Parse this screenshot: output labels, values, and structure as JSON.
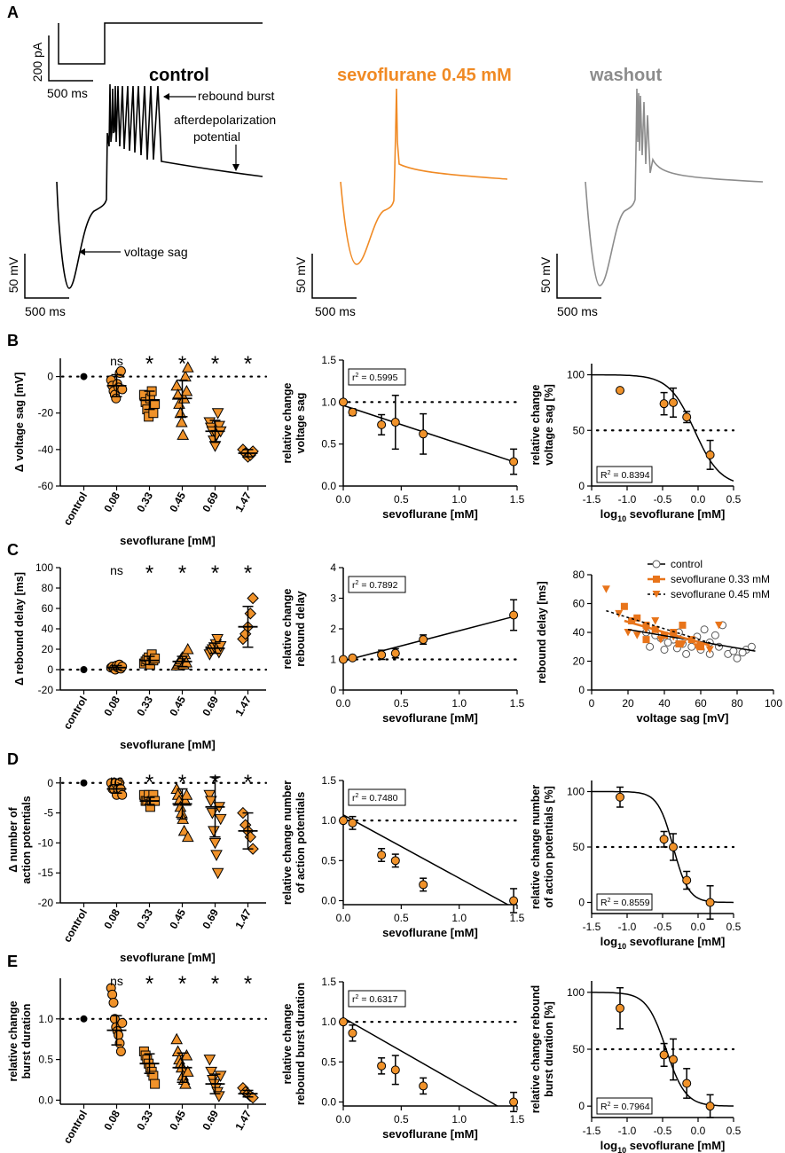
{
  "colors": {
    "orange": "#f0922a",
    "orange_dark": "#e8741a",
    "gray": "#8c8c8c",
    "black": "#000000"
  },
  "panel_letters": [
    "A",
    "B",
    "C",
    "D",
    "E"
  ],
  "panel_a": {
    "scale_current": "200 pA",
    "scale_time": "500 ms",
    "scale_voltage": "50 mV",
    "titles": [
      "control",
      "sevoflurane 0.45 mM",
      "washout"
    ],
    "annotations": {
      "rebound_burst": "rebound burst",
      "adp_line1": "afterdepolarization",
      "adp_line2": "potential",
      "voltage_sag": "voltage sag"
    }
  },
  "chart_data": [
    {
      "id": "B_left",
      "type": "scatter",
      "ylabel": "Δ voltage sag [mV]",
      "xlabel": "sevoflurane [mM]",
      "categories": [
        "control",
        "0.08",
        "0.33",
        "0.45",
        "0.69",
        "1.47"
      ],
      "ylim": [
        -60,
        10
      ],
      "yticks": [
        -60,
        -40,
        -20,
        0
      ],
      "sig": [
        "ns",
        "*",
        "*",
        "*",
        "*"
      ],
      "markers": [
        "circle",
        "circle",
        "square",
        "triangle",
        "triangle-down",
        "diamond"
      ],
      "points": [
        [
          0
        ],
        [
          -2,
          -5,
          -8,
          -10,
          -12,
          -4,
          -6,
          2,
          3,
          -7
        ],
        [
          -10,
          -14,
          -18,
          -22,
          -12,
          -8,
          -20,
          -15
        ],
        [
          -5,
          -10,
          -15,
          -20,
          -25,
          -32,
          -12,
          0,
          -8,
          5
        ],
        [
          -25,
          -28,
          -30,
          -35,
          -38,
          -32,
          -20,
          -27,
          -30
        ],
        [
          -40,
          -42,
          -44,
          -43,
          -41
        ]
      ],
      "means": [
        0,
        -5,
        -13,
        -12,
        -30,
        -42
      ],
      "sds": [
        0,
        6,
        5,
        10,
        6,
        2
      ]
    },
    {
      "id": "B_mid",
      "type": "line",
      "ylabel": [
        "relative change",
        "voltage sag"
      ],
      "xlabel": "sevoflurane [mM]",
      "xlim": [
        0,
        1.5
      ],
      "ylim": [
        0,
        1.5
      ],
      "xticks": [
        "0.0",
        "0.5",
        "1.0",
        "1.5"
      ],
      "yticks": [
        "0.0",
        "0.5",
        "1.0",
        "1.5"
      ],
      "r2_label": "r",
      "r2_value": " = 0.5995",
      "refline": 1.0,
      "x": [
        0,
        0.08,
        0.33,
        0.45,
        0.69,
        1.47
      ],
      "y": [
        1.0,
        0.88,
        0.73,
        0.76,
        0.62,
        0.29
      ],
      "err": [
        0,
        0.04,
        0.12,
        0.32,
        0.24,
        0.15
      ],
      "fit": [
        [
          0,
          0.96
        ],
        [
          1.47,
          0.29
        ]
      ]
    },
    {
      "id": "B_right",
      "type": "line",
      "ylabel": [
        "relative change",
        "voltage sag [%]"
      ],
      "xlabel_pre": "log",
      "xlabel_sub": "10",
      "xlabel_post": " sevoflurane [mM]",
      "xlim": [
        -1.5,
        0.5
      ],
      "ylim": [
        0,
        110
      ],
      "xticks": [
        "-1.5",
        "-1.0",
        "-0.5",
        "0.0",
        "0.5"
      ],
      "yticks": [
        "0",
        "50",
        "100"
      ],
      "r2_label": "R",
      "r2_value": " = 0.8394",
      "refline": 50,
      "x": [
        -1.1,
        -0.48,
        -0.35,
        -0.16,
        0.17
      ],
      "y": [
        86,
        74,
        75,
        62,
        28
      ],
      "err": [
        0,
        10,
        13,
        5,
        13
      ],
      "sigmoid": {
        "top": 100,
        "bottom": 0,
        "ic50": -0.05,
        "hill": 1.2
      }
    },
    {
      "id": "C_left",
      "type": "scatter",
      "ylabel": "Δ rebound delay [ms]",
      "xlabel": "sevoflurane [mM]",
      "categories": [
        "control",
        "0.08",
        "0.33",
        "0.45",
        "0.69",
        "1.47"
      ],
      "ylim": [
        -20,
        100
      ],
      "yticks": [
        -20,
        0,
        20,
        40,
        60,
        80,
        100
      ],
      "sig": [
        "ns",
        "*",
        "*",
        "*",
        "*"
      ],
      "markers": [
        "circle",
        "circle",
        "square",
        "triangle",
        "triangle-down",
        "diamond"
      ],
      "points": [
        [
          0
        ],
        [
          2,
          3,
          1,
          0,
          4,
          2,
          5,
          1,
          3
        ],
        [
          6,
          8,
          10,
          12,
          5,
          15,
          9,
          11
        ],
        [
          4,
          6,
          8,
          10,
          12,
          5,
          15,
          7,
          20
        ],
        [
          15,
          18,
          20,
          22,
          25,
          30,
          17,
          23
        ],
        [
          30,
          35,
          42,
          55,
          70
        ]
      ],
      "means": [
        0,
        2,
        9,
        8,
        21,
        42
      ],
      "sds": [
        0,
        2,
        4,
        5,
        5,
        20
      ]
    },
    {
      "id": "C_mid",
      "type": "line",
      "ylabel": [
        "relative change",
        "rebound delay"
      ],
      "xlabel": "sevoflurane [mM]",
      "xlim": [
        0,
        1.5
      ],
      "ylim": [
        0,
        4
      ],
      "xticks": [
        "0.0",
        "0.5",
        "1.0",
        "1.5"
      ],
      "yticks": [
        "0",
        "1",
        "2",
        "3",
        "4"
      ],
      "r2_label": "r",
      "r2_value": " = 0.7892",
      "refline": 1.0,
      "x": [
        0,
        0.08,
        0.33,
        0.45,
        0.69,
        1.47
      ],
      "y": [
        1.0,
        1.05,
        1.15,
        1.2,
        1.65,
        2.45
      ],
      "err": [
        0,
        0.05,
        0.15,
        0.15,
        0.15,
        0.5
      ],
      "fit": [
        [
          0,
          0.95
        ],
        [
          1.47,
          2.4
        ]
      ]
    },
    {
      "id": "C_right",
      "type": "scatter",
      "ylabel": "rebound delay [ms]",
      "xlabel": "voltage sag [mV]",
      "xlim": [
        0,
        100
      ],
      "ylim": [
        0,
        80
      ],
      "xticks": [
        "0",
        "20",
        "40",
        "60",
        "80",
        "100"
      ],
      "yticks": [
        "0",
        "20",
        "40",
        "60",
        "80"
      ],
      "legend": [
        "control",
        "sevoflurane 0.33 mM",
        "sevoflurane 0.45 mM"
      ],
      "control_pts": [
        [
          32,
          30
        ],
        [
          40,
          28
        ],
        [
          45,
          35
        ],
        [
          50,
          32
        ],
        [
          55,
          30
        ],
        [
          60,
          28
        ],
        [
          65,
          33
        ],
        [
          70,
          30
        ],
        [
          75,
          25
        ],
        [
          80,
          22
        ],
        [
          85,
          28
        ],
        [
          88,
          30
        ],
        [
          30,
          40
        ],
        [
          38,
          36
        ],
        [
          48,
          40
        ],
        [
          58,
          37
        ],
        [
          68,
          38
        ],
        [
          78,
          27
        ],
        [
          52,
          25
        ],
        [
          62,
          42
        ],
        [
          72,
          45
        ],
        [
          42,
          33
        ],
        [
          35,
          38
        ],
        [
          65,
          25
        ],
        [
          83,
          26
        ],
        [
          47,
          29
        ],
        [
          57,
          34
        ]
      ],
      "s033_pts": [
        [
          18,
          58
        ],
        [
          22,
          48
        ],
        [
          30,
          45
        ],
        [
          35,
          42
        ],
        [
          40,
          38
        ],
        [
          45,
          40
        ],
        [
          55,
          35
        ],
        [
          30,
          35
        ],
        [
          25,
          50
        ],
        [
          50,
          45
        ],
        [
          60,
          30
        ],
        [
          48,
          32
        ]
      ],
      "s045_pts": [
        [
          8,
          70
        ],
        [
          15,
          53
        ],
        [
          20,
          40
        ],
        [
          25,
          38
        ],
        [
          30,
          42
        ],
        [
          38,
          35
        ],
        [
          45,
          37
        ],
        [
          50,
          32
        ],
        [
          58,
          30
        ],
        [
          65,
          28
        ],
        [
          70,
          45
        ],
        [
          35,
          48
        ]
      ],
      "fit_control": [
        [
          20,
          42
        ],
        [
          90,
          27
        ]
      ],
      "fit_033": [
        [
          18,
          48
        ],
        [
          65,
          31
        ]
      ],
      "fit_045": [
        [
          8,
          55
        ],
        [
          72,
          30
        ]
      ]
    },
    {
      "id": "D_left",
      "type": "scatter",
      "ylabel": [
        "Δ number of",
        "action potentials"
      ],
      "xlabel": "sevoflurane [mM]",
      "categories": [
        "control",
        "0.08",
        "0.33",
        "0.45",
        "0.69",
        "1.47"
      ],
      "ylim": [
        -20,
        1
      ],
      "yticks": [
        -20,
        -15,
        -10,
        -5,
        0
      ],
      "sig": [
        "ns",
        "*",
        "*",
        "*",
        "*"
      ],
      "markers": [
        "circle",
        "circle",
        "square",
        "triangle",
        "triangle-down",
        "diamond"
      ],
      "points": [
        [
          0
        ],
        [
          0,
          -1,
          -1,
          0,
          -2,
          -1,
          0,
          -1,
          -2
        ],
        [
          -2,
          -3,
          -3,
          -2,
          -4,
          -3,
          -2,
          -3
        ],
        [
          -1,
          -2,
          -3,
          -4,
          -5,
          -6,
          -8,
          -3,
          -2,
          -9
        ],
        [
          -2,
          -3,
          -5,
          -8,
          -10,
          -12,
          -15,
          -4,
          -6
        ],
        [
          -5,
          -7,
          -8,
          -9,
          -11
        ]
      ],
      "means": [
        0,
        -1,
        -3,
        -3.5,
        -4,
        -8
      ],
      "sds": [
        0,
        0.7,
        0.6,
        2.5,
        5,
        3
      ]
    },
    {
      "id": "D_mid",
      "type": "line",
      "ylabel": [
        "relative change number",
        "of action potentials"
      ],
      "xlabel": "sevoflurane [mM]",
      "xlim": [
        0,
        1.5
      ],
      "ylim": [
        -0.05,
        1.5
      ],
      "xticks": [
        "0.0",
        "0.5",
        "1.0",
        "1.5"
      ],
      "yticks": [
        "0.0",
        "0.5",
        "1.0",
        "1.5"
      ],
      "r2_label": "r",
      "r2_value": " = 0.7480",
      "refline": 1.0,
      "x": [
        0,
        0.08,
        0.33,
        0.45,
        0.69,
        1.47
      ],
      "y": [
        1.0,
        0.97,
        0.57,
        0.5,
        0.2,
        0.0
      ],
      "err": [
        0,
        0.08,
        0.08,
        0.08,
        0.08,
        0.15
      ],
      "fit": [
        [
          0,
          1.07
        ],
        [
          1.42,
          -0.05
        ]
      ]
    },
    {
      "id": "D_right",
      "type": "line",
      "ylabel": [
        "relative change number",
        "of action potentials [%]"
      ],
      "xlabel_pre": "log",
      "xlabel_sub": "10",
      "xlabel_post": " sevoflurane [mM]",
      "xlim": [
        -1.5,
        0.5
      ],
      "ylim": [
        -10,
        110
      ],
      "xticks": [
        "-1.5",
        "-1.0",
        "-0.5",
        "0.0",
        "0.5"
      ],
      "yticks": [
        "0",
        "50",
        "100"
      ],
      "r2_label": "R",
      "r2_value": " = 0.8559",
      "refline": 50,
      "x": [
        -1.1,
        -0.48,
        -0.35,
        -0.16,
        0.17
      ],
      "y": [
        95,
        57,
        50,
        20,
        0
      ],
      "err": [
        9,
        7,
        12,
        8,
        15
      ],
      "sigmoid": {
        "top": 100,
        "bottom": 0,
        "ic50": -0.35,
        "hill": 2.0
      }
    },
    {
      "id": "E_left",
      "type": "scatter",
      "ylabel": [
        "relative change",
        "burst duration"
      ],
      "xlabel": "sevoflurane [mM]",
      "categories": [
        "control",
        "0.08",
        "0.33",
        "0.45",
        "0.69",
        "1.47"
      ],
      "ylim": [
        -0.05,
        1.5
      ],
      "yticks": [
        0.0,
        0.5,
        1.0
      ],
      "ytick_labels": [
        "0.0",
        "0.5",
        "1.0"
      ],
      "sig": [
        "ns",
        "*",
        "*",
        "*",
        "*"
      ],
      "markers": [
        "circle",
        "circle",
        "square",
        "triangle",
        "triangle-down",
        "diamond"
      ],
      "points": [
        [
          1.0
        ],
        [
          1.38,
          1.3,
          1.2,
          1.0,
          0.9,
          0.85,
          0.8,
          0.7,
          0.6,
          0.95
        ],
        [
          0.6,
          0.55,
          0.5,
          0.45,
          0.4,
          0.35,
          0.3,
          0.2
        ],
        [
          0.75,
          0.6,
          0.5,
          0.45,
          0.4,
          0.3,
          0.25,
          0.2,
          0.55,
          0.35
        ],
        [
          0.5,
          0.35,
          0.25,
          0.2,
          0.15,
          0.1,
          0.05,
          0.3
        ],
        [
          0.15,
          0.1,
          0.08,
          0.05,
          0.03
        ]
      ],
      "means": [
        1.0,
        0.86,
        0.45,
        0.4,
        0.2,
        0.08
      ],
      "sds": [
        0,
        0.18,
        0.12,
        0.18,
        0.12,
        0.04
      ]
    },
    {
      "id": "E_mid",
      "type": "line",
      "ylabel": [
        "relative change",
        "rebound burst duration"
      ],
      "xlabel": "sevoflurane [mM]",
      "xlim": [
        0,
        1.5
      ],
      "ylim": [
        -0.05,
        1.5
      ],
      "xticks": [
        "0.0",
        "0.5",
        "1.0",
        "1.5"
      ],
      "yticks": [
        "0.0",
        "0.5",
        "1.0",
        "1.5"
      ],
      "r2_label": "r",
      "r2_value": " = 0.6317",
      "refline": 1.0,
      "x": [
        0,
        0.08,
        0.33,
        0.45,
        0.69,
        1.47
      ],
      "y": [
        1.0,
        0.86,
        0.45,
        0.4,
        0.2,
        0.0
      ],
      "err": [
        0,
        0.1,
        0.1,
        0.18,
        0.1,
        0.12
      ],
      "fit": [
        [
          0,
          1.05
        ],
        [
          1.33,
          -0.05
        ]
      ]
    },
    {
      "id": "E_right",
      "type": "line",
      "ylabel": [
        "relative change rebound",
        "burst duration [%]"
      ],
      "xlabel_pre": "log",
      "xlabel_sub": "10",
      "xlabel_post": " sevoflurane [mM]",
      "xlim": [
        -1.5,
        0.5
      ],
      "ylim": [
        -10,
        110
      ],
      "xticks": [
        "-1.5",
        "-1.0",
        "-0.5",
        "0.0",
        "0.5"
      ],
      "yticks": [
        "0",
        "50",
        "100"
      ],
      "r2_label": "R",
      "r2_value": " = 0.7964",
      "refline": 50,
      "x": [
        -1.1,
        -0.48,
        -0.35,
        -0.16,
        0.17
      ],
      "y": [
        86,
        45,
        41,
        20,
        0
      ],
      "err": [
        18,
        10,
        18,
        13,
        10
      ],
      "sigmoid": {
        "top": 100,
        "bottom": 0,
        "ic50": -0.45,
        "hill": 1.6
      }
    }
  ]
}
